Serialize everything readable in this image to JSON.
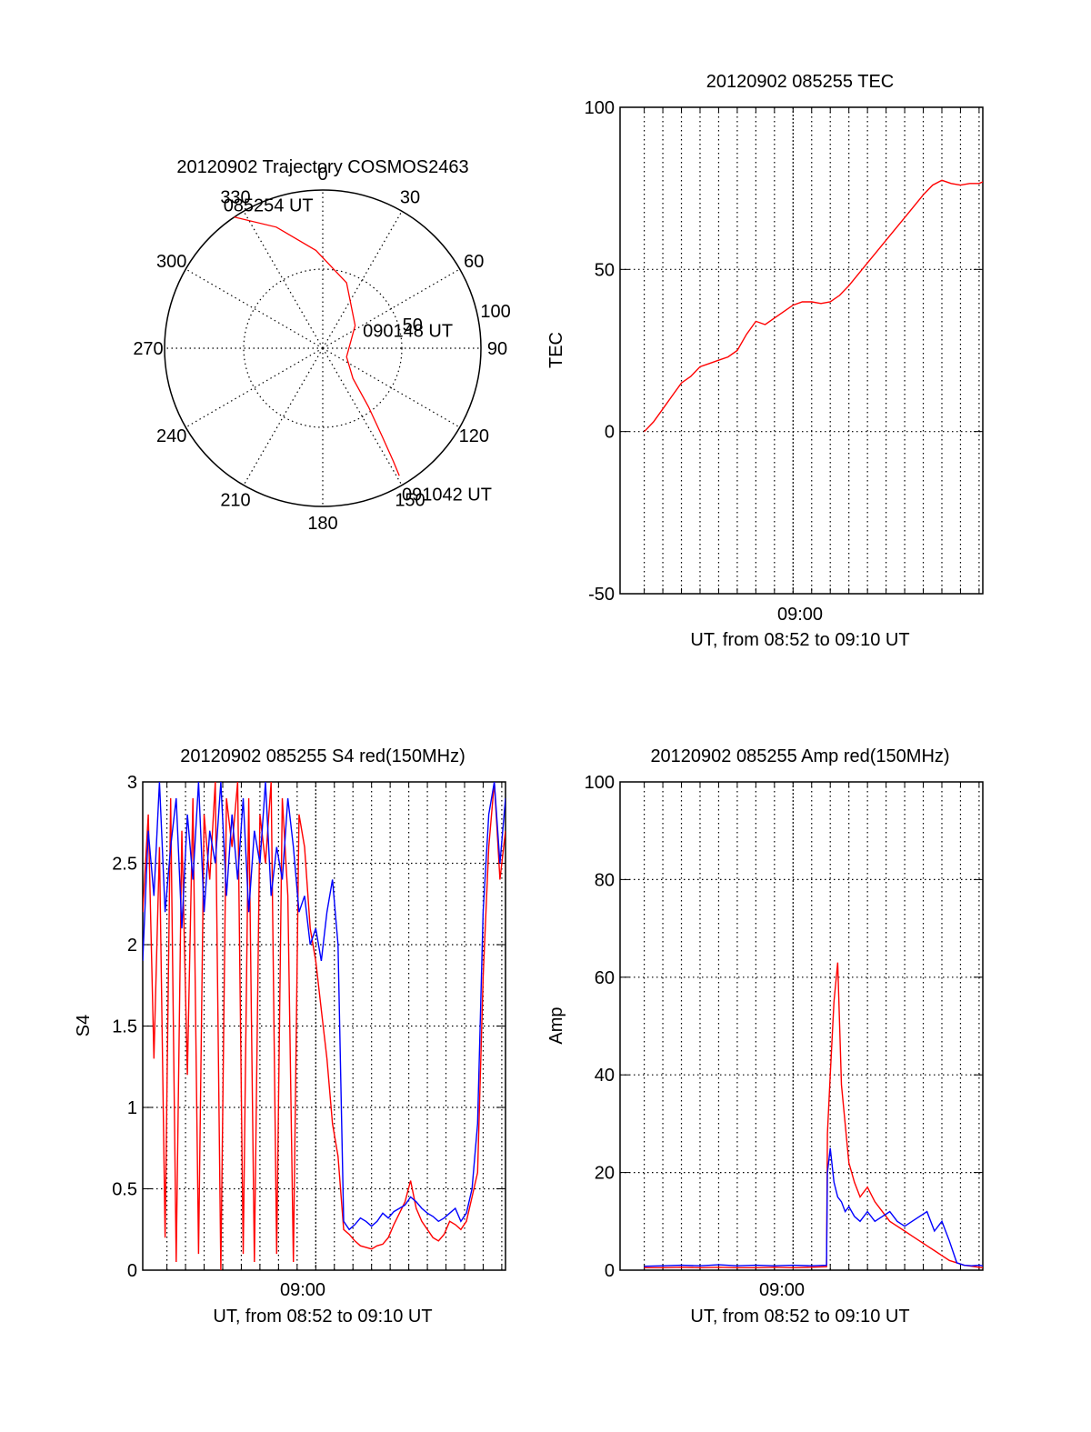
{
  "colors": {
    "background": "#ffffff",
    "axes": "#000000",
    "grid": "#000000",
    "red_series": "#ff0000",
    "blue_series": "#0000ff"
  },
  "chart_data": [
    {
      "id": "trajectory",
      "type": "polar",
      "title": "20120902 Trajectory COSMOS2463",
      "angle_labels": [
        "0",
        "30",
        "60",
        "90",
        "120",
        "150",
        "180",
        "210",
        "240",
        "270",
        "300",
        "330"
      ],
      "angle_label_values": [
        0,
        30,
        60,
        90,
        120,
        150,
        180,
        210,
        240,
        270,
        300,
        330
      ],
      "radial_ring_labels": [
        "50",
        "100"
      ],
      "radial_ring_values": [
        50,
        100
      ],
      "radial_range": [
        0,
        100
      ],
      "annotations": [
        {
          "text": "085254 UT",
          "azimuth": 326,
          "r": 100
        },
        {
          "text": "090148 UT",
          "azimuth": 152,
          "r": 5
        },
        {
          "text": "091042 UT",
          "azimuth": 150,
          "r": 100
        }
      ],
      "series": [
        {
          "color": "red",
          "points": [
            {
              "az": 326,
              "r": 100
            },
            {
              "az": 339,
              "r": 82
            },
            {
              "az": 356,
              "r": 62
            },
            {
              "az": 20,
              "r": 44
            },
            {
              "az": 55,
              "r": 25
            },
            {
              "az": 110,
              "r": 16
            },
            {
              "az": 135,
              "r": 27
            },
            {
              "az": 142,
              "r": 47
            },
            {
              "az": 146,
              "r": 67
            },
            {
              "az": 148,
              "r": 84
            },
            {
              "az": 149,
              "r": 94
            }
          ]
        }
      ]
    },
    {
      "id": "tec",
      "type": "line",
      "title": "20120902 085255 TEC",
      "xlabel": "UT, from 08:52 to 09:10 UT",
      "ylabel": "TEC",
      "x_unit": "minutes_after_08:52",
      "xlim": [
        -1.3,
        18.2
      ],
      "ylim": [
        -50,
        100
      ],
      "yticks": [
        -50,
        0,
        50,
        100
      ],
      "xticks": [
        {
          "value": 8,
          "label": "09:00"
        }
      ],
      "x_minor_ticks": [
        0,
        1,
        2,
        3,
        4,
        5,
        6,
        7,
        8,
        9,
        10,
        11,
        12,
        13,
        14,
        15,
        16,
        17,
        18
      ],
      "series": [
        {
          "color": "red",
          "x": [
            0,
            0.5,
            1,
            1.5,
            2,
            2.5,
            3,
            3.5,
            4,
            4.5,
            5,
            5.5,
            6,
            6.5,
            7,
            7.5,
            8,
            8.5,
            9,
            9.5,
            10,
            10.5,
            11,
            11.5,
            12,
            12.5,
            13,
            13.5,
            14,
            14.5,
            15,
            15.5,
            16,
            16.5,
            17,
            17.5,
            18,
            18.2
          ],
          "y": [
            0,
            3,
            7,
            11,
            15,
            17,
            20,
            21,
            22,
            23,
            25,
            30,
            34,
            33,
            35,
            37,
            39,
            40,
            40,
            39.5,
            40,
            42,
            45,
            48.5,
            52,
            55.5,
            59,
            62.5,
            66,
            69.5,
            73,
            76,
            77.5,
            76.5,
            76,
            76.5,
            76.5,
            77
          ]
        }
      ]
    },
    {
      "id": "s4",
      "type": "line",
      "title": "20120902 085255 S4 red(150MHz)",
      "xlabel": "UT, from 08:52 to 09:10 UT",
      "ylabel": "S4",
      "x_unit": "minutes_after_08:52",
      "xlim": [
        -1.3,
        18.2
      ],
      "ylim": [
        0,
        3
      ],
      "yticks": [
        0,
        0.5,
        1,
        1.5,
        2,
        2.5,
        3
      ],
      "xticks": [
        {
          "value": 8,
          "label": "09:00"
        }
      ],
      "x_minor_ticks": [
        0,
        1,
        2,
        3,
        4,
        5,
        6,
        7,
        8,
        9,
        10,
        11,
        12,
        13,
        14,
        15,
        16,
        17,
        18
      ],
      "series": [
        {
          "color": "red",
          "x": [
            -1.3,
            -1.0,
            -0.7,
            -0.4,
            -0.1,
            0.2,
            0.5,
            0.8,
            1.1,
            1.4,
            1.7,
            2.0,
            2.3,
            2.6,
            2.9,
            3.2,
            3.5,
            3.8,
            4.1,
            4.4,
            4.7,
            5.0,
            5.3,
            5.6,
            5.9,
            6.2,
            6.5,
            6.8,
            7.1,
            7.4,
            7.7,
            8.0,
            8.3,
            8.6,
            8.9,
            9.2,
            9.5,
            9.8,
            10.1,
            10.4,
            10.7,
            11.0,
            11.3,
            11.6,
            11.9,
            12.2,
            12.5,
            12.8,
            13.1,
            13.4,
            13.7,
            14.0,
            14.3,
            14.6,
            14.9,
            15.2,
            15.5,
            15.8,
            16.1,
            16.4,
            16.7,
            17.0,
            17.3,
            17.6,
            17.9,
            18.2
          ],
          "y": [
            2.2,
            2.8,
            1.3,
            2.6,
            0.2,
            2.9,
            0.05,
            2.7,
            1.2,
            2.9,
            0.1,
            2.8,
            2.4,
            3.0,
            0.0,
            2.9,
            2.6,
            3.0,
            0.1,
            2.9,
            0.05,
            2.8,
            2.5,
            3.0,
            0.1,
            2.9,
            2.3,
            0.05,
            2.8,
            2.6,
            2.1,
            1.9,
            1.6,
            1.3,
            0.9,
            0.7,
            0.25,
            0.22,
            0.18,
            0.15,
            0.14,
            0.13,
            0.15,
            0.16,
            0.2,
            0.28,
            0.35,
            0.42,
            0.55,
            0.38,
            0.3,
            0.25,
            0.2,
            0.18,
            0.22,
            0.3,
            0.28,
            0.25,
            0.3,
            0.45,
            0.6,
            1.8,
            2.6,
            3.0,
            2.4,
            2.7
          ]
        },
        {
          "color": "blue",
          "x": [
            -1.3,
            -1.0,
            -0.7,
            -0.4,
            -0.1,
            0.2,
            0.5,
            0.8,
            1.1,
            1.4,
            1.7,
            2.0,
            2.3,
            2.6,
            2.9,
            3.2,
            3.5,
            3.8,
            4.1,
            4.4,
            4.7,
            5.0,
            5.3,
            5.6,
            5.9,
            6.2,
            6.5,
            6.8,
            7.1,
            7.4,
            7.7,
            8.0,
            8.3,
            8.6,
            8.9,
            9.2,
            9.5,
            9.8,
            10.1,
            10.4,
            10.7,
            11.0,
            11.3,
            11.6,
            11.9,
            12.2,
            12.5,
            12.8,
            13.1,
            13.4,
            13.7,
            14.0,
            14.3,
            14.6,
            14.9,
            15.2,
            15.5,
            15.8,
            16.1,
            16.4,
            16.7,
            17.0,
            17.3,
            17.6,
            17.9,
            18.2
          ],
          "y": [
            1.9,
            2.7,
            2.3,
            3.0,
            2.2,
            2.6,
            2.9,
            2.1,
            2.8,
            2.4,
            3.0,
            2.2,
            2.7,
            2.5,
            3.0,
            2.3,
            2.8,
            2.4,
            2.9,
            2.2,
            2.7,
            2.5,
            3.0,
            2.3,
            2.6,
            2.4,
            2.9,
            2.6,
            2.2,
            2.3,
            2.0,
            2.1,
            1.9,
            2.2,
            2.4,
            2.0,
            0.3,
            0.25,
            0.28,
            0.32,
            0.3,
            0.27,
            0.3,
            0.35,
            0.32,
            0.36,
            0.38,
            0.4,
            0.45,
            0.42,
            0.38,
            0.35,
            0.33,
            0.3,
            0.32,
            0.35,
            0.38,
            0.3,
            0.35,
            0.5,
            0.9,
            2.2,
            2.8,
            3.0,
            2.5,
            2.9
          ]
        }
      ]
    },
    {
      "id": "amp",
      "type": "line",
      "title": "20120902 085255 Amp red(150MHz)",
      "xlabel": "UT, from 08:52 to 09:10 UT",
      "ylabel": "Amp",
      "x_unit": "minutes_after_08:52",
      "xlim": [
        -1.3,
        18.2
      ],
      "ylim": [
        0,
        100
      ],
      "yticks": [
        0,
        20,
        40,
        60,
        80,
        100
      ],
      "xticks": [
        {
          "value": 8,
          "label": "09:00"
        }
      ],
      "x_minor_ticks": [
        0,
        1,
        2,
        3,
        4,
        5,
        6,
        7,
        8,
        9,
        10,
        11,
        12,
        13,
        14,
        15,
        16,
        17,
        18
      ],
      "series": [
        {
          "color": "red",
          "x": [
            0,
            1,
            2,
            3,
            4,
            5,
            6,
            7,
            8,
            9,
            9.8,
            9.85,
            10.0,
            10.2,
            10.4,
            10.6,
            10.8,
            11.0,
            11.3,
            11.6,
            12.0,
            12.4,
            12.8,
            13.2,
            13.6,
            14.0,
            14.4,
            14.8,
            15.2,
            15.6,
            16.0,
            16.4,
            16.8,
            17.2,
            17.6,
            18.0,
            18.2
          ],
          "y": [
            0.5,
            0.5,
            0.6,
            0.5,
            0.6,
            0.5,
            0.5,
            0.6,
            0.5,
            0.6,
            0.7,
            28,
            40,
            55,
            63,
            38,
            30,
            22,
            18,
            15,
            17,
            14,
            12,
            10,
            9,
            8,
            7,
            6,
            5,
            4,
            3,
            2,
            1.5,
            1,
            0.8,
            0.6,
            0.5
          ]
        },
        {
          "color": "blue",
          "x": [
            0,
            1,
            2,
            3,
            4,
            5,
            6,
            7,
            8,
            9,
            9.8,
            9.85,
            10.0,
            10.2,
            10.4,
            10.6,
            10.8,
            11.0,
            11.3,
            11.6,
            12.0,
            12.4,
            12.8,
            13.2,
            13.6,
            14.0,
            14.4,
            14.8,
            15.2,
            15.6,
            16.0,
            16.4,
            16.8,
            17.2,
            17.6,
            18.0,
            18.2
          ],
          "y": [
            0.8,
            0.9,
            1.0,
            0.9,
            1.1,
            0.9,
            1.0,
            0.9,
            1.0,
            0.9,
            1.0,
            20,
            25,
            18,
            15,
            14,
            12,
            13,
            11,
            10,
            12,
            10,
            11,
            12,
            10,
            9,
            10,
            11,
            12,
            8,
            10,
            6,
            1.5,
            1.0,
            0.9,
            1.0,
            0.9
          ]
        }
      ]
    }
  ]
}
